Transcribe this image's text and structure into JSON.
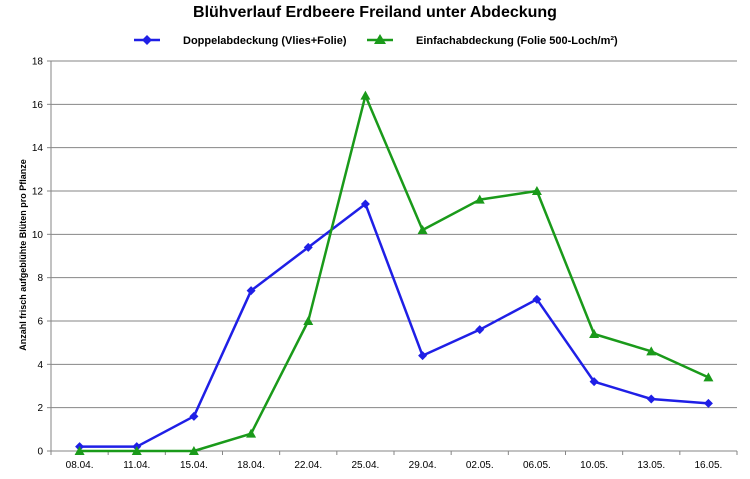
{
  "chart_data": {
    "type": "line",
    "title": "Blühverlauf Erdbeere Freiland unter Abdeckung",
    "xlabel": "",
    "ylabel": "Anzahl frisch aufgeblühte Blüten pro Pflanze",
    "categories": [
      "08.04.",
      "11.04.",
      "15.04.",
      "18.04.",
      "22.04.",
      "25.04.",
      "29.04.",
      "02.05.",
      "06.05.",
      "10.05.",
      "13.05.",
      "16.05."
    ],
    "ylim": [
      0,
      18
    ],
    "yticks": [
      "0",
      "2",
      "4",
      "6",
      "8",
      "10",
      "12",
      "14",
      "16",
      "18"
    ],
    "grid": true,
    "legend_position": "top",
    "series": [
      {
        "name": "Doppelabdeckung (Vlies+Folie)",
        "color": "#1f1fe6",
        "marker": "diamond",
        "values": [
          0.2,
          0.2,
          1.6,
          7.4,
          9.4,
          11.4,
          4.4,
          5.6,
          7.0,
          3.2,
          2.4,
          2.2
        ]
      },
      {
        "name": "Einfachabdeckung (Folie 500-Loch/m²)",
        "color": "#1a9a1a",
        "marker": "triangle",
        "values": [
          0.0,
          0.0,
          0.0,
          0.8,
          6.0,
          16.4,
          10.2,
          11.6,
          12.0,
          5.4,
          4.6,
          3.4
        ]
      }
    ]
  }
}
